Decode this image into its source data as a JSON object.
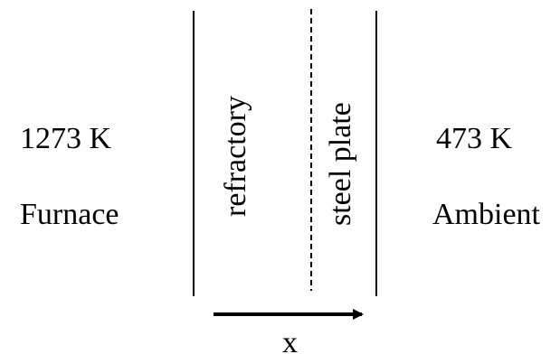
{
  "left": {
    "temperature": "1273 K",
    "name": "Furnace"
  },
  "right": {
    "temperature": "473 K",
    "name": "Ambient"
  },
  "layers": {
    "refractory": "refractory",
    "steel": "steel plate"
  },
  "axis": {
    "label": "x"
  }
}
